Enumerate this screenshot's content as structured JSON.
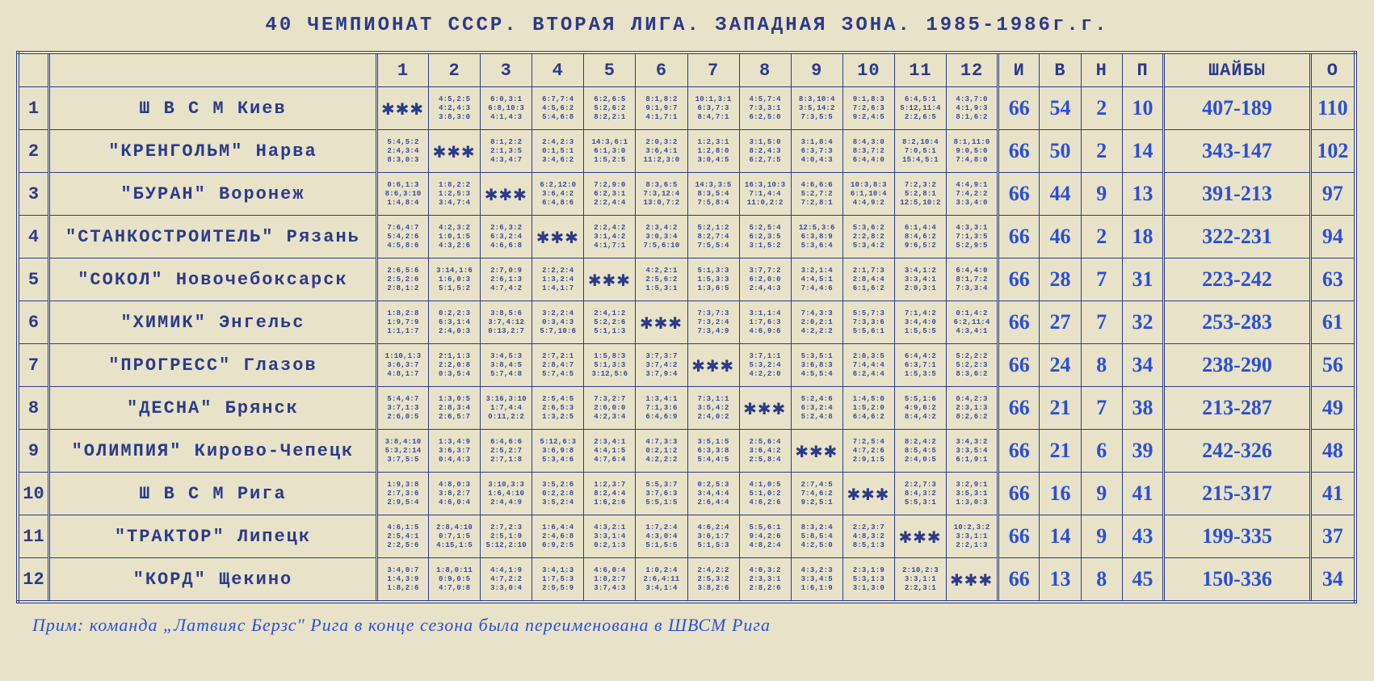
{
  "title": "40   ЧЕМПИОНАТ   СССР.   ВТОРАЯ   ЛИГА.   ЗАПАДНАЯ   ЗОНА.   1985-1986г.г.",
  "columns_opp": [
    "1",
    "2",
    "3",
    "4",
    "5",
    "6",
    "7",
    "8",
    "9",
    "10",
    "11",
    "12"
  ],
  "columns_stat": [
    "И",
    "В",
    "Н",
    "П"
  ],
  "columns_goals": "ШАЙБЫ",
  "columns_pts": "О",
  "diag": "✱✱✱",
  "footnote": "Прим: команда „Латвияс Берзс\" Рига в конце сезона была переименована в ШВСМ Рига",
  "rows": [
    {
      "n": "1",
      "team": "Ш В С М   Киев",
      "cells": [
        null,
        "4:5,2:5\n4:2,4:3\n3:8,3:0",
        "6:0,3:1\n6:8,10:3\n4:1,4:3",
        "6:7,7:4\n4:5,6:2\n5:4,6:8",
        "6:2,6:5\n5:2,6:2\n8:2,2:1",
        "8:1,8:2\n9:1,9:7\n4:1,7:1",
        "10:1,3:1\n6:3,7:3\n8:4,7:1",
        "4:5,7:4\n7:3,3:1\n6:2,5:0",
        "8:3,10:4\n3:5,14:2\n7:3,5:5",
        "9:1,8:3\n7:2,6:3\n9:2,4:5",
        "6:4,5:1\n5:12,11:4\n2:2,6:5",
        "4:3,7:0\n4:1,9:3\n8:1,6:2"
      ],
      "I": "66",
      "V": "54",
      "N": "2",
      "P": "10",
      "goals": "407-189",
      "pts": "110"
    },
    {
      "n": "2",
      "team": "\"КРЕНГОЛЬМ\" Нарва",
      "cells": [
        "5:4,5:2\n2:4,3:4\n8:3,0:3",
        null,
        "8:1,2:2\n2:1,3:5\n4:3,4:7",
        "2:4,2:3\n0:1,5:1\n3:4,6:2",
        "14:3,6:1\n6:1,3:0\n1:5,2:5",
        "2:0,3:2\n3:6,4:1\n11:2,3:0",
        "1:2,3:1\n1:2,8:0\n3:0,4:5",
        "3:1,5:0\n8:2,4:3\n6:2,7:5",
        "3:1,8:4\n6:3,7:3\n4:0,4:3",
        "8:4,3:0\n8:3,7:2\n6:4,4:0",
        "8:2,10:4\n7:0,5:1\n15:4,5:1",
        "8:1,11:0\n9:0,5:0\n7:4,8:0"
      ],
      "I": "66",
      "V": "50",
      "N": "2",
      "P": "14",
      "goals": "343-147",
      "pts": "102"
    },
    {
      "n": "3",
      "team": "\"БУРАН\" Воронеж",
      "cells": [
        "0:6,1:3\n8:6,3:10\n1:4,8:4",
        "1:8,2:2\n1:2,5:3\n3:4,7:4",
        null,
        "6:2,12:0\n3:6,4:2\n6:4,8:6",
        "7:2,9:0\n6:2,3:1\n2:2,4:4",
        "8:3,6:5\n7:3,12:4\n13:0,7:2",
        "14:3,3:5\n8:3,5:4\n7:5,8:4",
        "16:3,10:3\n7:1,4:4\n11:0,2:2",
        "4:6,6:6\n5:2,7:2\n7:2,8:1",
        "10:3,8:3\n6:1,10:4\n4:4,9:2",
        "7:2,3:2\n5:2,8:1\n12:5,10:2",
        "4:4,9:1\n7:4,2:2\n3:3,4:0"
      ],
      "I": "66",
      "V": "44",
      "N": "9",
      "P": "13",
      "goals": "391-213",
      "pts": "97"
    },
    {
      "n": "4",
      "team": "\"СТАНКОСТРОИТЕЛЬ\" Рязань",
      "cells": [
        "7:6,4:7\n5:4,2:6\n4:5,8:6",
        "4:2,3:2\n1:0,1:5\n4:3,2:6",
        "2:6,3:2\n6:3,2:4\n4:6,6:8",
        null,
        "2:2,4:2\n3:1,4:2\n4:1,7:1",
        "2:3,4:2\n3:0,3:4\n7:5,6:10",
        "5:2,1:2\n8:2,7:4\n7:5,5:4",
        "5:2,5:4\n6:2,3:5\n3:1,5:2",
        "12:5,3:6\n6:3,8:9\n5:3,6:4",
        "5:3,6:2\n2:2,8:2\n5:3,4:2",
        "6:1,4:4\n8:4,6:2\n9:6,5:2",
        "4:3,3:1\n7:1,3:5\n5:2,9:5"
      ],
      "I": "66",
      "V": "46",
      "N": "2",
      "P": "18",
      "goals": "322-231",
      "pts": "94"
    },
    {
      "n": "5",
      "team": "\"СОКОЛ\" Новочебоксарск",
      "cells": [
        "2:6,5:6\n2:5,2:6\n2:8,1:2",
        "3:14,1:6\n1:6,0:3\n5:1,5:2",
        "2:7,0:9\n2:6,1:3\n4:7,4:2",
        "2:2,2:4\n1:3,2:4\n1:4,1:7",
        null,
        "4:2,2:1\n2:5,6:2\n1:5,3:1",
        "5:1,3:3\n1:5,3:3\n1:3,6:5",
        "3:7,7:2\n6:2,0:0\n2:4,4:3",
        "3:2,1:4\n4:4,5:1\n7:4,4:6",
        "2:1,7:3\n2:8,4:4\n6:1,6:2",
        "3:4,1:2\n3:3,4:1\n2:0,3:1",
        "6:4,4:0\n8:1,7:2\n7:3,3:4"
      ],
      "I": "66",
      "V": "28",
      "N": "7",
      "P": "31",
      "goals": "223-242",
      "pts": "63"
    },
    {
      "n": "6",
      "team": "\"ХИМИК\" Энгельс",
      "cells": [
        "1:8,2:8\n1:9,7:9\n1:1,1:7",
        "0:2,2:3\n6:3,1:4\n2:4,0:3",
        "3:8,5:6\n3:7,4:12\n0:13,2:7",
        "3:2,2:4\n0:3,4:3\n5:7,10:6",
        "2:4,1:2\n5:2,2:6\n5:1,1:3",
        null,
        "7:3,7:3\n7:3,2:4\n7:3,4:9",
        "3:1,1:4\n1:7,6:3\n4:6,9:6",
        "7:4,3:3\n2:0,2:1\n4:2,2:2",
        "5:5,7:3\n7:3,3:6\n5:5,6:1",
        "7:1,4:2\n3:4,4:0\n1:5,5:5",
        "0:1,4:2\n6:2,11:4\n4:3,4:1"
      ],
      "I": "66",
      "V": "27",
      "N": "7",
      "P": "32",
      "goals": "253-283",
      "pts": "61"
    },
    {
      "n": "7",
      "team": "\"ПРОГРЕСС\" Глазов",
      "cells": [
        "1:10,1:3\n3:6,3:7\n4:8,1:7",
        "2:1,1:3\n2:2,0:8\n0:3,5:4",
        "3:4,5:3\n3:8,4:5\n5:7,4:8",
        "2:7,2:1\n2:8,4:7\n5:7,4:5",
        "1:5,8:3\n5:1,3:3\n3:12,5:6",
        "3:7,3:7\n3:7,4:2\n3:7,9:4",
        null,
        "3:7,1:1\n5:3,2:4\n4:2,2:0",
        "5:3,5:1\n3:6,8:3\n4:5,5:4",
        "2:0,3:5\n7:4,4:4\n6:2,4:4",
        "6:4,4:2\n6:3,7:1\n1:5,3:5",
        "5:2,2:2\n5:2,2:3\n8:3,6:2"
      ],
      "I": "66",
      "V": "24",
      "N": "8",
      "P": "34",
      "goals": "238-290",
      "pts": "56"
    },
    {
      "n": "8",
      "team": "\"ДЕСНА\" Брянск",
      "cells": [
        "5:4,4:7\n3:7,1:3\n2:6,0:5",
        "1:3,0:5\n2:8,3:4\n2:6,5:7",
        "3:16,3:10\n1:7,4:4\n0:11,2:2",
        "2:5,4:5\n2:6,5:3\n1:3,2:5",
        "7:3,2:7\n2:6,0:0\n4:2,3:4",
        "1:3,4:1\n7:1,3:6\n6:4,6:9",
        "7:3,1:1\n3:5,4:2\n2:4,0:2",
        null,
        "5:2,4:6\n6:3,2:4\n5:2,4:8",
        "1:4,5:0\n1:5,2:0\n6:4,6:2",
        "5:5,1:6\n4:9,6:2\n8:4,4:2",
        "0:4,2:3\n2:3,1:3\n8:2,6:2"
      ],
      "I": "66",
      "V": "21",
      "N": "7",
      "P": "38",
      "goals": "213-287",
      "pts": "49"
    },
    {
      "n": "9",
      "team": "\"ОЛИМПИЯ\" Кирово-Чепецк",
      "cells": [
        "3:8,4:10\n5:3,2:14\n3:7,5:5",
        "1:3,4:9\n3:6,3:7\n0:4,4:3",
        "6:4,6:6\n2:5,2:7\n2:7,1:8",
        "5:12,6:3\n3:6,9:8\n5:3,4:6",
        "2:3,4:1\n4:4,1:5\n4:7,6:4",
        "4:7,3:3\n0:2,1:2\n4:2,2:2",
        "3:5,1:5\n6:3,3:8\n5:4,4:5",
        "2:5,6:4\n3:6,4:2\n2:5,8:4",
        null,
        "7:2,5:4\n4:7,2:6\n2:9,1:5",
        "8:2,4:2\n8:5,4:5\n2:4,0:5",
        "3:4,3:2\n3:3,5:4\n6:1,9:1"
      ],
      "I": "66",
      "V": "21",
      "N": "6",
      "P": "39",
      "goals": "242-326",
      "pts": "48"
    },
    {
      "n": "10",
      "team": "Ш В С М    Рига",
      "cells": [
        "1:9,3:8\n2:7,3:6\n2:9,5:4",
        "4:8,0:3\n3:8,2:7\n4:6,0:4",
        "3:10,3:3\n1:6,4:10\n2:4,4:9",
        "3:5,2:6\n0:2,2:8\n3:5,2:4",
        "1:2,3:7\n8:2,4:4\n1:6,2:6",
        "5:5,3:7\n3:7,6:3\n5:5,1:5",
        "0:2,5:3\n3:4,4:4\n2:6,4:4",
        "4:1,0:5\n5:1,0:2\n4:6,2:6",
        "2:7,4:5\n7:4,6:2\n9:2,5:1",
        null,
        "2:2,7:3\n8:4,3:2\n5:5,3:1",
        "3:2,9:1\n3:5,3:1\n1:3,0:3"
      ],
      "I": "66",
      "V": "16",
      "N": "9",
      "P": "41",
      "goals": "215-317",
      "pts": "41"
    },
    {
      "n": "11",
      "team": "\"ТРАКТОР\" Липецк",
      "cells": [
        "4:6,1:5\n2:5,4:1\n2:2,5:6",
        "2:8,4:10\n0:7,1:5\n4:15,1:5",
        "2:7,2:3\n2:5,1:9\n5:12,2:10",
        "1:6,4:4\n2:4,6:8\n6:9,2:5",
        "4:3,2:1\n3:3,1:4\n0:2,1:3",
        "1:7,2:4\n4:3,0:4\n5:1,5:5",
        "4:6,2:4\n3:6,1:7\n5:1,5:3",
        "5:5,6:1\n9:4,2:6\n4:8,2:4",
        "8:3,2:4\n5:8,5:4\n4:2,5:0",
        "2:2,3:7\n4:8,3:2\n8:5,1:3",
        null,
        "10:2,3:2\n3:3,1:1\n2:2,1:3"
      ],
      "I": "66",
      "V": "14",
      "N": "9",
      "P": "43",
      "goals": "199-335",
      "pts": "37"
    },
    {
      "n": "12",
      "team": "\"КОРД\" Щекино",
      "cells": [
        "3:4,0:7\n1:4,3:9\n1:8,2:6",
        "1:8,0:11\n0:9,0:5\n4:7,0:8",
        "4:4,1:9\n4:7,2:2\n3:3,0:4",
        "3:4,1:3\n1:7,5:3\n2:5,5:9",
        "4:6,0:4\n1:8,2:7\n3:7,4:3",
        "1:0,2:4\n2:6,4:11\n3:4,1:4",
        "2:4,2:2\n2:5,3:2\n3:8,2:6",
        "4:0,3:2\n2:3,3:1\n2:8,2:6",
        "4:3,2:3\n3:3,4:5\n1:6,1:9",
        "2:3,1:9\n5:3,1:3\n3:1,3:0",
        "2:10,2:3\n3:3,1:1\n2:2,3:1",
        null
      ],
      "I": "66",
      "V": "13",
      "N": "8",
      "P": "45",
      "goals": "150-336",
      "pts": "34"
    }
  ]
}
